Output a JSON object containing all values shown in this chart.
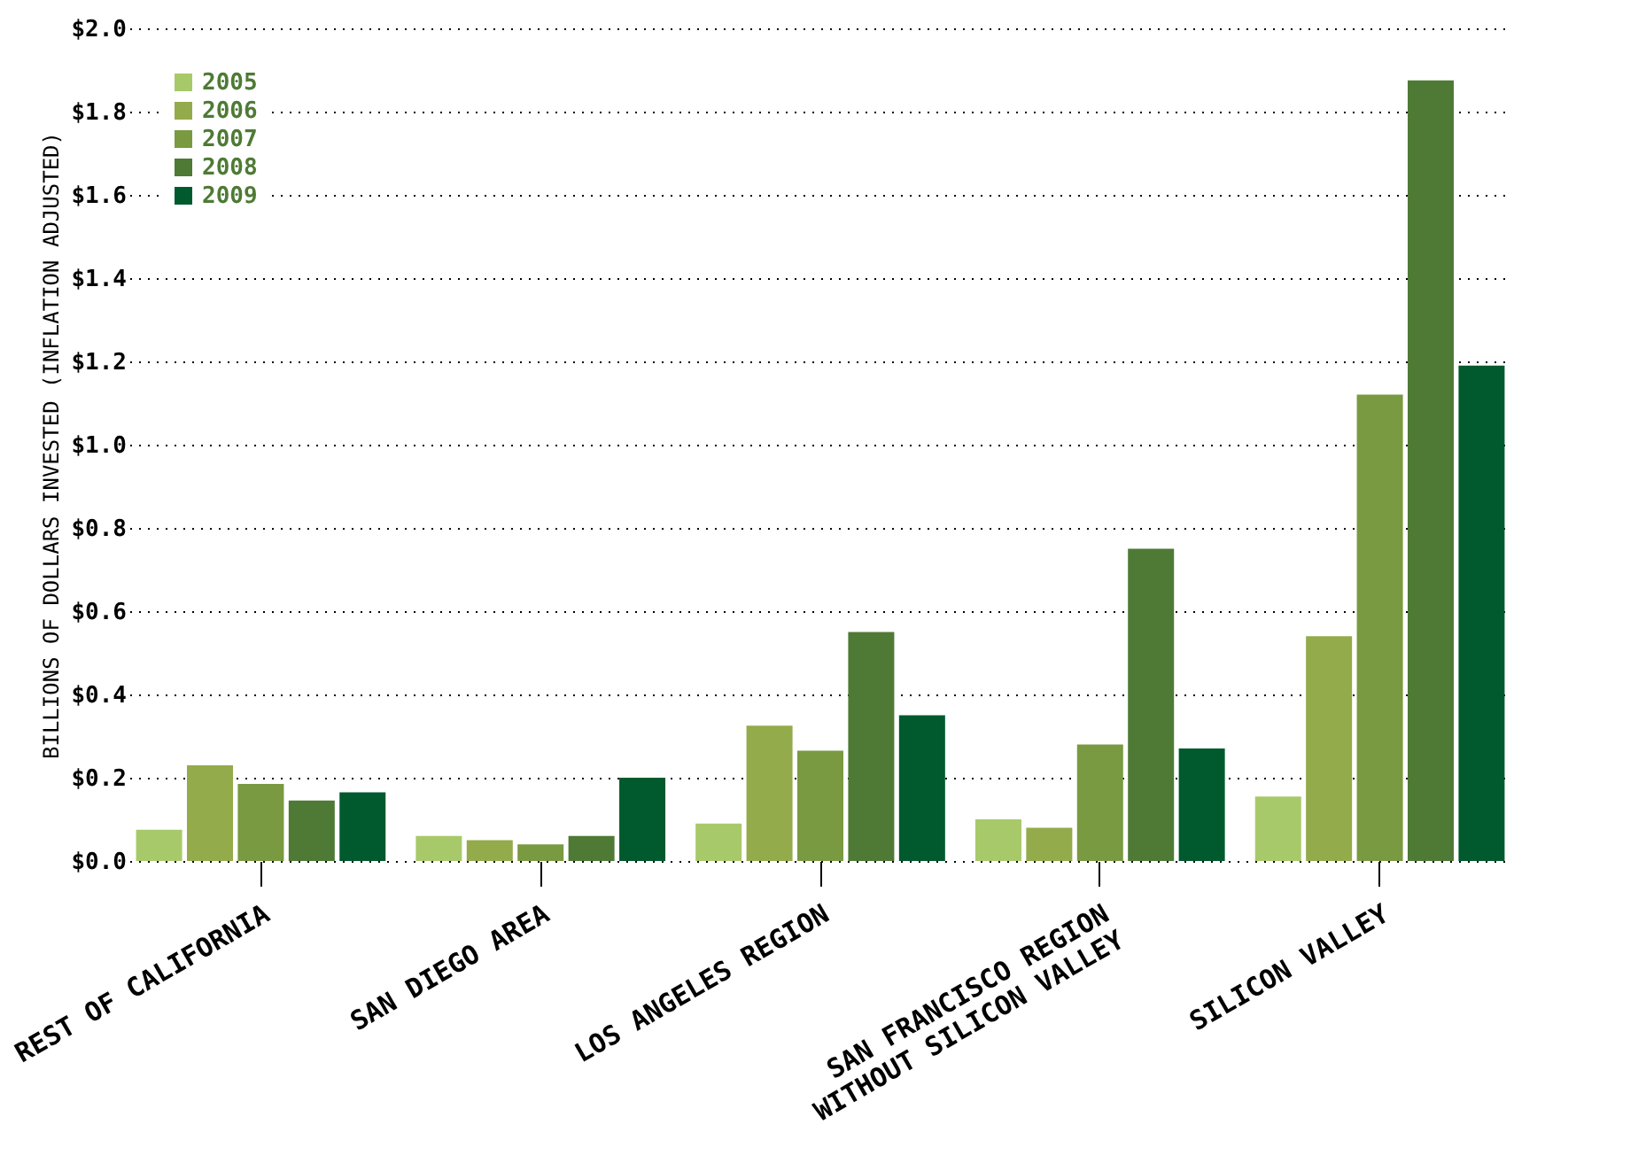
{
  "chart_data": {
    "type": "bar",
    "ylabel": "BILLIONS OF DOLLARS INVESTED (INFLATION ADJUSTED)",
    "categories": [
      "REST OF CALIFORNIA",
      "SAN DIEGO AREA",
      "LOS ANGELES REGION",
      "SAN FRANCISCO REGION\nWITHOUT SILICON VALLEY",
      "SILICON VALLEY"
    ],
    "series": [
      {
        "name": "2005",
        "color": "#a8c96a",
        "values": [
          0.075,
          0.06,
          0.09,
          0.1,
          0.155
        ]
      },
      {
        "name": "2006",
        "color": "#93ab4a",
        "values": [
          0.23,
          0.05,
          0.325,
          0.08,
          0.54
        ]
      },
      {
        "name": "2007",
        "color": "#799a40",
        "values": [
          0.185,
          0.04,
          0.265,
          0.28,
          1.12
        ]
      },
      {
        "name": "2008",
        "color": "#4e7a35",
        "values": [
          0.145,
          0.06,
          0.55,
          0.75,
          1.875
        ]
      },
      {
        "name": "2009",
        "color": "#005a2e",
        "values": [
          0.165,
          0.2,
          0.35,
          0.27,
          1.19
        ]
      }
    ],
    "ylim": [
      0,
      2
    ],
    "yticks": [
      {
        "value": 0,
        "label": "$0.0"
      },
      {
        "value": 0.2,
        "label": "$0.2"
      },
      {
        "value": 0.4,
        "label": "$0.4"
      },
      {
        "value": 0.6,
        "label": "$0.6"
      },
      {
        "value": 0.8,
        "label": "$0.8"
      },
      {
        "value": 1.0,
        "label": "$1.0"
      },
      {
        "value": 1.2,
        "label": "$1.2"
      },
      {
        "value": 1.4,
        "label": "$1.4"
      },
      {
        "value": 1.6,
        "label": "$1.6"
      },
      {
        "value": 1.8,
        "label": "$1.8"
      },
      {
        "value": 2.0,
        "label": "$2.0"
      }
    ],
    "grid": "y",
    "legend": "top left"
  }
}
